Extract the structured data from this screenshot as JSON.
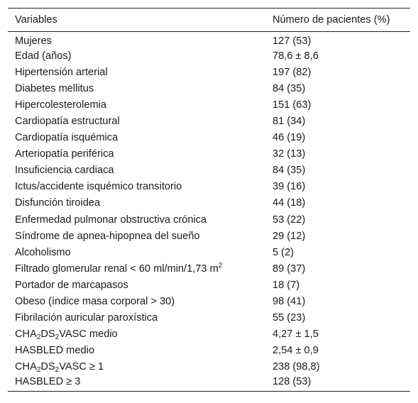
{
  "table": {
    "headers": [
      "Variables",
      "Número de pacientes (%)"
    ],
    "rows": [
      {
        "label": "Mujeres",
        "value": "127 (53)"
      },
      {
        "label": "Edad (años)",
        "value": "78,6 ± 8,6"
      },
      {
        "label": "Hipertensión arterial",
        "value": "197 (82)"
      },
      {
        "label": "Diabetes mellitus",
        "value": "84 (35)"
      },
      {
        "label": "Hipercolesterolemia",
        "value": "151 (63)"
      },
      {
        "label": "Cardiopatía estructural",
        "value": "81 (34)"
      },
      {
        "label": "Cardiopatía isquémica",
        "value": "46 (19)"
      },
      {
        "label": "Arteriopatía periférica",
        "value": "32 (13)"
      },
      {
        "label": "Insuficiencia cardiaca",
        "value": "84 (35)"
      },
      {
        "label": "Ictus/accidente isquémico transitorio",
        "value": "39 (16)"
      },
      {
        "label": "Disfunción tiroidea",
        "value": "44 (18)"
      },
      {
        "label": "Enfermedad pulmonar obstructiva crónica",
        "value": "53 (22)"
      },
      {
        "label": "Síndrome de apnea-hipopnea del sueño",
        "value": "29 (12)"
      },
      {
        "label": "Alcoholismo",
        "value": "5 (2)"
      },
      {
        "label": "Filtrado glomerular renal < 60 ml/min/1,73 m",
        "label_sup": "2",
        "value": "89 (37)"
      },
      {
        "label": "Portador de marcapasos",
        "value": "18 (7)"
      },
      {
        "label": "Obeso (índice masa corporal > 30)",
        "value": "98 (41)"
      },
      {
        "label": "Fibrilación auricular paroxística",
        "value": "55 (23)"
      },
      {
        "label_parts": [
          "CHA",
          "2",
          "DS",
          "2",
          "VASC medio"
        ],
        "value": "4,27 ± 1,5"
      },
      {
        "label": "HASBLED medio",
        "value": "2,54 ± 0,9"
      },
      {
        "label_parts": [
          "CHA",
          "2",
          "DS",
          "2",
          "VASC ≥ 1"
        ],
        "value": "238 (98,8)"
      },
      {
        "label": "HASBLED ≥ 3",
        "value": "128 (53)"
      }
    ]
  }
}
